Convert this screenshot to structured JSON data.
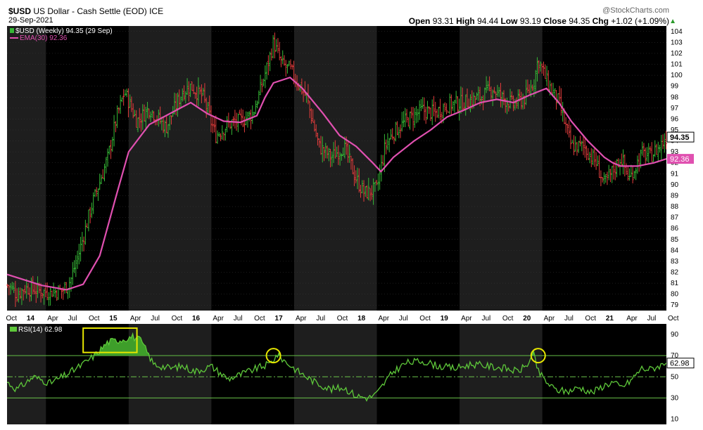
{
  "header": {
    "symbol": "$USD",
    "name": "US Dollar - Cash Settle (EOD)",
    "exchange": "ICE",
    "date": "29-Sep-2021",
    "watermark": "@StockCharts.com",
    "quote": {
      "open_label": "Open",
      "open": "93.31",
      "high_label": "High",
      "high": "94.44",
      "low_label": "Low",
      "low": "93.19",
      "close_label": "Close",
      "close": "94.35",
      "chg_label": "Chg",
      "chg": "+1.02 (+1.09%)"
    }
  },
  "colors": {
    "background": "#000000",
    "shade_band": "#1e1e1e",
    "up_bar": "#36b836",
    "down_bar": "#e03c3c",
    "ema": "#e050b0",
    "rsi_line": "#5ec83a",
    "rsi_fill": "#3e9e2a",
    "grid": "#3a3a3a",
    "level_line": "#6ac24a",
    "highlight": "#e6e600"
  },
  "chart_data": [
    {
      "type": "line",
      "panel": "price",
      "legend": [
        {
          "label": "$USD (Weekly) 94.35 (29 Sep)",
          "color": "#36b836"
        },
        {
          "label": "EMA(30) 92.36",
          "color": "#e050b0"
        }
      ],
      "ylim": [
        78.5,
        104.5
      ],
      "y_ticks": [
        79,
        80,
        81,
        82,
        83,
        84,
        85,
        86,
        87,
        88,
        89,
        90,
        91,
        92,
        93,
        94,
        95,
        96,
        97,
        98,
        99,
        100,
        101,
        102,
        103,
        104
      ],
      "last_value_label": "94.35",
      "ema_value_label": "92.36",
      "x_ticks": [
        "Oct",
        "14",
        "Apr",
        "Jul",
        "Oct",
        "15",
        "Apr",
        "Jul",
        "Oct",
        "16",
        "Apr",
        "Jul",
        "Oct",
        "17",
        "Apr",
        "Jul",
        "Oct",
        "18",
        "Apr",
        "Jul",
        "Oct",
        "19",
        "Apr",
        "Jul",
        "Oct",
        "20",
        "Apr",
        "Jul",
        "Oct",
        "21",
        "Apr",
        "Jul",
        "Oct"
      ],
      "year_ticks": [
        "14",
        "15",
        "16",
        "17",
        "18",
        "19",
        "20",
        "21"
      ],
      "x_range": [
        2013.78,
        2021.75
      ],
      "series": [
        {
          "name": "$USD (Weekly)",
          "x": [
            2013.8,
            2013.9,
            2014.0,
            2014.25,
            2014.45,
            2014.55,
            2014.65,
            2014.8,
            2015.0,
            2015.1,
            2015.2,
            2015.35,
            2015.5,
            2015.7,
            2015.9,
            2016.0,
            2016.15,
            2016.3,
            2016.45,
            2016.6,
            2016.75,
            2016.85,
            2016.95,
            2017.0,
            2017.1,
            2017.2,
            2017.4,
            2017.55,
            2017.7,
            2017.85,
            2018.0,
            2018.1,
            2018.25,
            2018.35,
            2018.45,
            2018.6,
            2018.8,
            2018.95,
            2019.1,
            2019.3,
            2019.5,
            2019.65,
            2019.75,
            2019.9,
            2020.05,
            2020.15,
            2020.2,
            2020.3,
            2020.45,
            2020.6,
            2020.75,
            2020.9,
            2021.0,
            2021.1,
            2021.2,
            2021.3,
            2021.45,
            2021.55,
            2021.65,
            2021.75
          ],
          "values": [
            80.8,
            80.0,
            80.6,
            80.2,
            80.3,
            81.3,
            83.8,
            88.0,
            92.5,
            96.0,
            98.5,
            95.8,
            97.0,
            95.2,
            98.5,
            99.0,
            98.0,
            94.5,
            95.5,
            95.8,
            96.5,
            98.8,
            101.5,
            103.0,
            101.0,
            100.5,
            98.0,
            93.5,
            92.5,
            93.5,
            90.5,
            89.2,
            89.6,
            93.5,
            94.8,
            95.8,
            96.8,
            96.5,
            97.3,
            97.5,
            98.0,
            98.8,
            98.0,
            97.3,
            98.0,
            99.5,
            101.5,
            99.5,
            97.5,
            93.5,
            93.5,
            92.0,
            90.0,
            91.2,
            92.5,
            90.5,
            92.8,
            92.6,
            93.3,
            94.35
          ]
        },
        {
          "name": "EMA(30)",
          "x": [
            2013.78,
            2014.2,
            2014.5,
            2014.7,
            2014.9,
            2015.1,
            2015.25,
            2015.5,
            2015.75,
            2016.0,
            2016.2,
            2016.4,
            2016.6,
            2016.8,
            2016.9,
            2017.0,
            2017.2,
            2017.35,
            2017.6,
            2017.8,
            2018.0,
            2018.2,
            2018.3,
            2018.45,
            2018.7,
            2018.9,
            2019.1,
            2019.3,
            2019.5,
            2019.7,
            2019.9,
            2020.1,
            2020.3,
            2020.45,
            2020.6,
            2020.8,
            2021.0,
            2021.1,
            2021.2,
            2021.4,
            2021.6,
            2021.75
          ],
          "values": [
            81.8,
            80.8,
            80.4,
            80.9,
            83.5,
            89.0,
            93.0,
            95.5,
            96.5,
            97.5,
            96.5,
            95.8,
            95.7,
            96.3,
            98.0,
            99.3,
            99.8,
            98.8,
            96.5,
            94.5,
            93.5,
            92.0,
            91.2,
            92.5,
            94.0,
            95.0,
            96.2,
            96.8,
            97.5,
            97.8,
            97.5,
            98.2,
            98.8,
            97.5,
            95.8,
            94.0,
            92.5,
            92.0,
            91.7,
            91.7,
            92.0,
            92.36
          ]
        }
      ]
    },
    {
      "type": "area",
      "panel": "indicator",
      "legend": [
        {
          "label": "RSI(14) 62.98",
          "color": "#5ec83a"
        }
      ],
      "ylim": [
        5,
        100
      ],
      "y_ticks": [
        10,
        30,
        50,
        70,
        90
      ],
      "levels": [
        70,
        50,
        30
      ],
      "last_value_label": "62.98",
      "series": [
        {
          "name": "RSI(14)",
          "x": [
            2013.78,
            2013.9,
            2014.1,
            2014.3,
            2014.5,
            2014.6,
            2014.7,
            2014.85,
            2015.0,
            2015.15,
            2015.3,
            2015.4,
            2015.55,
            2015.75,
            2015.9,
            2016.05,
            2016.25,
            2016.45,
            2016.6,
            2016.8,
            2016.95,
            2017.05,
            2017.15,
            2017.3,
            2017.5,
            2017.7,
            2017.85,
            2018.0,
            2018.15,
            2018.25,
            2018.35,
            2018.45,
            2018.6,
            2018.8,
            2019.0,
            2019.2,
            2019.4,
            2019.6,
            2019.8,
            2019.95,
            2020.05,
            2020.15,
            2020.2,
            2020.3,
            2020.4,
            2020.55,
            2020.7,
            2020.85,
            2021.0,
            2021.1,
            2021.2,
            2021.3,
            2021.45,
            2021.55,
            2021.65,
            2021.75
          ],
          "values": [
            45,
            38,
            50,
            44,
            52,
            57,
            62,
            71,
            83,
            85,
            88,
            84,
            62,
            58,
            60,
            55,
            60,
            48,
            52,
            58,
            62,
            71,
            64,
            55,
            45,
            38,
            40,
            32,
            30,
            34,
            45,
            55,
            63,
            65,
            60,
            58,
            62,
            60,
            58,
            55,
            60,
            71,
            55,
            45,
            38,
            36,
            40,
            35,
            42,
            45,
            40,
            45,
            58,
            57,
            60,
            62.98
          ]
        }
      ],
      "highlights": [
        {
          "kind": "rectangle",
          "x": [
            2014.7,
            2015.35
          ],
          "y": [
            73,
            96
          ]
        },
        {
          "kind": "circle",
          "x": 2017.0,
          "y": 70
        },
        {
          "kind": "circle",
          "x": 2020.2,
          "y": 70
        }
      ]
    }
  ]
}
